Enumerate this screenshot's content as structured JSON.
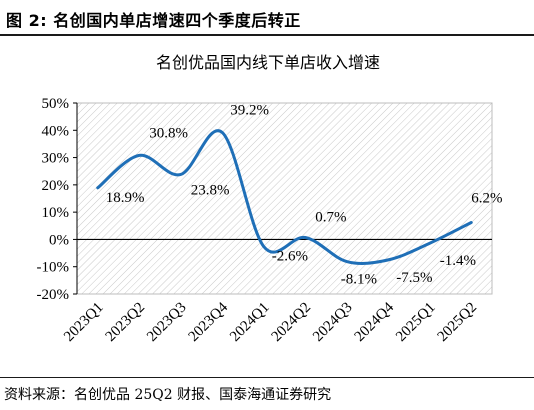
{
  "figure": {
    "label": "图 2:",
    "caption": "名创国内单店增速四个季度后转正"
  },
  "source": "资料来源：名创优品 25Q2 财报、国泰海通证券研究",
  "chart_data": {
    "type": "line",
    "title": "名创优品国内线下单店收入增速",
    "xlabel": "",
    "ylabel": "",
    "categories": [
      "2023Q1",
      "2023Q2",
      "2023Q3",
      "2023Q4",
      "2024Q1",
      "2024Q2",
      "2024Q3",
      "2024Q4",
      "2025Q1",
      "2025Q2"
    ],
    "ylim": [
      -20,
      50
    ],
    "yticks": [
      "-20%",
      "-10%",
      "0%",
      "10%",
      "20%",
      "30%",
      "40%",
      "50%"
    ],
    "grid": "diagonal hatch background",
    "legend": "none",
    "series": [
      {
        "color": "#1f6fb7",
        "smooth": true,
        "values": [
          18.9,
          30.8,
          23.8,
          39.2,
          -2.6,
          0.7,
          -8.1,
          -7.5,
          -1.4,
          6.2
        ],
        "labels": [
          "18.9%",
          "30.8%",
          "23.8%",
          "39.2%",
          "-2.6%",
          "0.7%",
          "-8.1%",
          "-7.5%",
          "-1.4%",
          "6.2%"
        ]
      }
    ]
  }
}
